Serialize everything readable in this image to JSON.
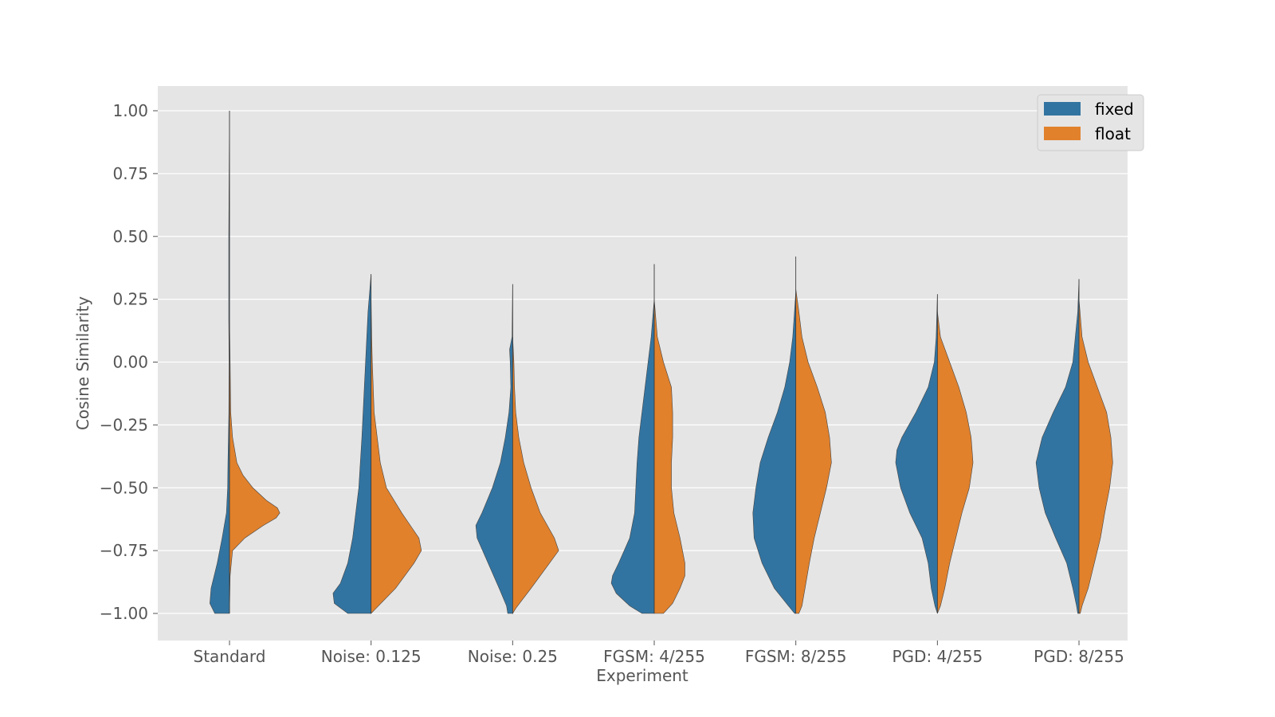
{
  "chart_data": {
    "type": "violin",
    "split": true,
    "xlabel": "Experiment",
    "ylabel": "Cosine Similarity",
    "ylim": [
      -1.1,
      1.1
    ],
    "yticks": [
      1.0,
      0.75,
      0.5,
      0.25,
      0.0,
      -0.25,
      -0.5,
      -0.75,
      -1.0
    ],
    "ytick_labels": [
      "1.00",
      "0.75",
      "0.50",
      "0.25",
      "0.00",
      "−0.25",
      "−0.50",
      "−0.75",
      "−1.00"
    ],
    "grid": true,
    "legend_position": "top-right",
    "categories": [
      "Standard",
      "Noise: 0.125",
      "Noise: 0.25",
      "FGSM: 4/255",
      "FGSM: 8/255",
      "PGD: 4/255",
      "PGD: 8/255"
    ],
    "series": [
      {
        "name": "fixed",
        "color": "#3274a1"
      },
      {
        "name": "float",
        "color": "#e1812c"
      }
    ],
    "violins": [
      {
        "category": "Standard",
        "fixed": {
          "range": [
            -1.0,
            1.0
          ],
          "profile": [
            [
              1.0,
              0.0
            ],
            [
              0.5,
              0.012
            ],
            [
              0.17,
              0.012
            ],
            [
              0.0,
              0.006
            ],
            [
              -0.2,
              0.01
            ],
            [
              -0.4,
              0.025
            ],
            [
              -0.5,
              0.03
            ],
            [
              -0.6,
              0.05
            ],
            [
              -0.7,
              0.12
            ],
            [
              -0.8,
              0.2
            ],
            [
              -0.9,
              0.3
            ],
            [
              -0.96,
              0.32
            ],
            [
              -1.0,
              0.24
            ]
          ]
        },
        "float": {
          "range": [
            -1.0,
            0.17
          ],
          "profile": [
            [
              0.17,
              0.0
            ],
            [
              0.0,
              0.01
            ],
            [
              -0.2,
              0.02
            ],
            [
              -0.3,
              0.05
            ],
            [
              -0.4,
              0.12
            ],
            [
              -0.45,
              0.22
            ],
            [
              -0.5,
              0.38
            ],
            [
              -0.55,
              0.6
            ],
            [
              -0.58,
              0.78
            ],
            [
              -0.6,
              0.82
            ],
            [
              -0.62,
              0.76
            ],
            [
              -0.65,
              0.55
            ],
            [
              -0.7,
              0.25
            ],
            [
              -0.75,
              0.05
            ],
            [
              -0.85,
              0.01
            ],
            [
              -1.0,
              0.0
            ]
          ]
        }
      },
      {
        "category": "Noise: 0.125",
        "fixed": {
          "range": [
            -1.0,
            0.35
          ],
          "profile": [
            [
              0.35,
              0.0
            ],
            [
              0.2,
              0.05
            ],
            [
              0.1,
              0.07
            ],
            [
              0.0,
              0.09
            ],
            [
              -0.1,
              0.11
            ],
            [
              -0.3,
              0.15
            ],
            [
              -0.5,
              0.2
            ],
            [
              -0.7,
              0.3
            ],
            [
              -0.8,
              0.38
            ],
            [
              -0.88,
              0.5
            ],
            [
              -0.92,
              0.62
            ],
            [
              -0.96,
              0.6
            ],
            [
              -1.0,
              0.38
            ]
          ]
        },
        "float": {
          "range": [
            -1.0,
            0.25
          ],
          "profile": [
            [
              0.25,
              0.0
            ],
            [
              0.1,
              0.01
            ],
            [
              0.0,
              0.02
            ],
            [
              -0.2,
              0.05
            ],
            [
              -0.4,
              0.15
            ],
            [
              -0.5,
              0.25
            ],
            [
              -0.6,
              0.5
            ],
            [
              -0.7,
              0.78
            ],
            [
              -0.75,
              0.82
            ],
            [
              -0.8,
              0.7
            ],
            [
              -0.9,
              0.4
            ],
            [
              -0.98,
              0.08
            ],
            [
              -1.0,
              0.0
            ]
          ]
        }
      },
      {
        "category": "Noise: 0.25",
        "fixed": {
          "range": [
            -1.0,
            0.31
          ],
          "profile": [
            [
              0.31,
              0.0
            ],
            [
              0.1,
              0.01
            ],
            [
              0.05,
              0.05
            ],
            [
              0.0,
              0.04
            ],
            [
              -0.1,
              0.03
            ],
            [
              -0.2,
              0.06
            ],
            [
              -0.3,
              0.12
            ],
            [
              -0.4,
              0.2
            ],
            [
              -0.5,
              0.33
            ],
            [
              -0.6,
              0.5
            ],
            [
              -0.65,
              0.6
            ],
            [
              -0.7,
              0.58
            ],
            [
              -0.8,
              0.4
            ],
            [
              -0.9,
              0.22
            ],
            [
              -0.97,
              0.1
            ],
            [
              -1.0,
              0.08
            ]
          ]
        },
        "float": {
          "range": [
            -1.0,
            0.1
          ],
          "profile": [
            [
              0.1,
              0.0
            ],
            [
              0.0,
              0.02
            ],
            [
              -0.1,
              0.03
            ],
            [
              -0.2,
              0.05
            ],
            [
              -0.3,
              0.1
            ],
            [
              -0.4,
              0.18
            ],
            [
              -0.5,
              0.3
            ],
            [
              -0.6,
              0.45
            ],
            [
              -0.7,
              0.68
            ],
            [
              -0.75,
              0.75
            ],
            [
              -0.8,
              0.6
            ],
            [
              -0.9,
              0.3
            ],
            [
              -0.98,
              0.05
            ],
            [
              -1.0,
              0.0
            ]
          ]
        }
      },
      {
        "category": "FGSM: 4/255",
        "fixed": {
          "range": [
            -1.0,
            0.39
          ],
          "profile": [
            [
              0.39,
              0.0
            ],
            [
              0.25,
              0.0
            ],
            [
              0.1,
              0.05
            ],
            [
              0.0,
              0.1
            ],
            [
              -0.1,
              0.15
            ],
            [
              -0.2,
              0.2
            ],
            [
              -0.3,
              0.25
            ],
            [
              -0.4,
              0.28
            ],
            [
              -0.5,
              0.3
            ],
            [
              -0.6,
              0.32
            ],
            [
              -0.7,
              0.4
            ],
            [
              -0.8,
              0.58
            ],
            [
              -0.85,
              0.68
            ],
            [
              -0.88,
              0.7
            ],
            [
              -0.92,
              0.62
            ],
            [
              -0.97,
              0.4
            ],
            [
              -1.0,
              0.2
            ]
          ]
        },
        "float": {
          "range": [
            -1.0,
            0.25
          ],
          "profile": [
            [
              0.25,
              0.0
            ],
            [
              0.1,
              0.05
            ],
            [
              0.0,
              0.15
            ],
            [
              -0.1,
              0.28
            ],
            [
              -0.2,
              0.3
            ],
            [
              -0.3,
              0.3
            ],
            [
              -0.4,
              0.28
            ],
            [
              -0.5,
              0.28
            ],
            [
              -0.6,
              0.32
            ],
            [
              -0.7,
              0.42
            ],
            [
              -0.8,
              0.5
            ],
            [
              -0.85,
              0.5
            ],
            [
              -0.9,
              0.42
            ],
            [
              -0.96,
              0.3
            ],
            [
              -1.0,
              0.15
            ]
          ]
        }
      },
      {
        "category": "FGSM: 8/255",
        "fixed": {
          "range": [
            -1.0,
            0.42
          ],
          "profile": [
            [
              0.42,
              0.0
            ],
            [
              0.28,
              0.0
            ],
            [
              0.1,
              0.05
            ],
            [
              0.0,
              0.1
            ],
            [
              -0.1,
              0.18
            ],
            [
              -0.2,
              0.3
            ],
            [
              -0.3,
              0.45
            ],
            [
              -0.4,
              0.58
            ],
            [
              -0.5,
              0.65
            ],
            [
              -0.6,
              0.7
            ],
            [
              -0.7,
              0.68
            ],
            [
              -0.8,
              0.55
            ],
            [
              -0.9,
              0.35
            ],
            [
              -0.97,
              0.12
            ],
            [
              -1.0,
              0.02
            ]
          ]
        },
        "float": {
          "range": [
            -1.0,
            0.29
          ],
          "profile": [
            [
              0.29,
              0.0
            ],
            [
              0.2,
              0.05
            ],
            [
              0.1,
              0.1
            ],
            [
              0.0,
              0.2
            ],
            [
              -0.1,
              0.35
            ],
            [
              -0.2,
              0.48
            ],
            [
              -0.3,
              0.55
            ],
            [
              -0.4,
              0.58
            ],
            [
              -0.5,
              0.5
            ],
            [
              -0.6,
              0.4
            ],
            [
              -0.7,
              0.3
            ],
            [
              -0.8,
              0.22
            ],
            [
              -0.9,
              0.15
            ],
            [
              -0.97,
              0.1
            ],
            [
              -1.0,
              0.05
            ]
          ]
        }
      },
      {
        "category": "PGD: 4/255",
        "fixed": {
          "range": [
            -1.0,
            0.27
          ],
          "profile": [
            [
              0.27,
              0.0
            ],
            [
              0.1,
              0.02
            ],
            [
              0.0,
              0.05
            ],
            [
              -0.1,
              0.15
            ],
            [
              -0.2,
              0.35
            ],
            [
              -0.3,
              0.58
            ],
            [
              -0.35,
              0.66
            ],
            [
              -0.4,
              0.68
            ],
            [
              -0.5,
              0.6
            ],
            [
              -0.6,
              0.45
            ],
            [
              -0.7,
              0.25
            ],
            [
              -0.8,
              0.15
            ],
            [
              -0.9,
              0.1
            ],
            [
              -0.97,
              0.04
            ],
            [
              -1.0,
              0.0
            ]
          ]
        },
        "float": {
          "range": [
            -1.0,
            0.2
          ],
          "profile": [
            [
              0.2,
              0.0
            ],
            [
              0.1,
              0.05
            ],
            [
              0.0,
              0.2
            ],
            [
              -0.1,
              0.35
            ],
            [
              -0.2,
              0.47
            ],
            [
              -0.3,
              0.55
            ],
            [
              -0.4,
              0.58
            ],
            [
              -0.5,
              0.52
            ],
            [
              -0.6,
              0.4
            ],
            [
              -0.7,
              0.3
            ],
            [
              -0.8,
              0.2
            ],
            [
              -0.9,
              0.12
            ],
            [
              -0.97,
              0.05
            ],
            [
              -1.0,
              0.0
            ]
          ]
        }
      },
      {
        "category": "PGD: 8/255",
        "fixed": {
          "range": [
            -1.0,
            0.33
          ],
          "profile": [
            [
              0.33,
              0.0
            ],
            [
              0.2,
              0.02
            ],
            [
              0.0,
              0.1
            ],
            [
              -0.1,
              0.22
            ],
            [
              -0.2,
              0.42
            ],
            [
              -0.3,
              0.6
            ],
            [
              -0.4,
              0.7
            ],
            [
              -0.5,
              0.65
            ],
            [
              -0.6,
              0.55
            ],
            [
              -0.7,
              0.38
            ],
            [
              -0.8,
              0.2
            ],
            [
              -0.9,
              0.1
            ],
            [
              -0.97,
              0.04
            ],
            [
              -1.0,
              0.02
            ]
          ]
        },
        "float": {
          "range": [
            -1.0,
            0.25
          ],
          "profile": [
            [
              0.25,
              0.0
            ],
            [
              0.1,
              0.05
            ],
            [
              0.0,
              0.15
            ],
            [
              -0.1,
              0.3
            ],
            [
              -0.2,
              0.45
            ],
            [
              -0.3,
              0.52
            ],
            [
              -0.4,
              0.55
            ],
            [
              -0.5,
              0.5
            ],
            [
              -0.6,
              0.42
            ],
            [
              -0.7,
              0.35
            ],
            [
              -0.8,
              0.25
            ],
            [
              -0.9,
              0.15
            ],
            [
              -0.97,
              0.05
            ],
            [
              -1.0,
              0.02
            ]
          ]
        }
      }
    ]
  }
}
